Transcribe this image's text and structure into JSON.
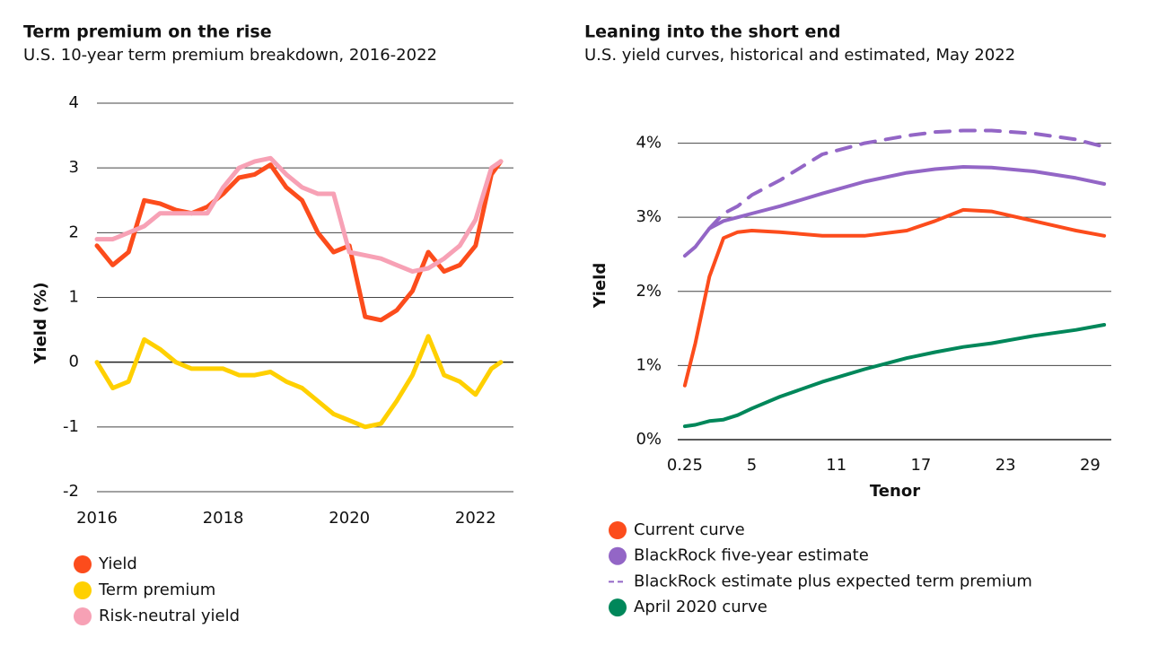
{
  "chart_data": [
    {
      "type": "line",
      "title": "Term premium on the rise",
      "subtitle": "U.S. 10-year term premium breakdown, 2016-2022",
      "ylabel": "Yield (%)",
      "x": [
        2016,
        2016.25,
        2016.5,
        2016.75,
        2017,
        2017.25,
        2017.5,
        2017.75,
        2018,
        2018.25,
        2018.5,
        2018.75,
        2019,
        2019.25,
        2019.5,
        2019.75,
        2020,
        2020.25,
        2020.5,
        2020.75,
        2021,
        2021.25,
        2021.5,
        2021.75,
        2022,
        2022.25,
        2022.4
      ],
      "series": [
        {
          "name": "Yield",
          "color": "#fc4c1c",
          "values": [
            1.8,
            1.5,
            1.7,
            2.5,
            2.45,
            2.35,
            2.3,
            2.4,
            2.6,
            2.85,
            2.9,
            3.05,
            2.7,
            2.5,
            2.0,
            1.7,
            1.8,
            0.7,
            0.65,
            0.8,
            1.1,
            1.7,
            1.4,
            1.5,
            1.8,
            2.9,
            3.1
          ]
        },
        {
          "name": "Term premium",
          "color": "#ffd000",
          "values": [
            0,
            -0.4,
            -0.3,
            0.35,
            0.2,
            0,
            -0.1,
            -0.1,
            -0.1,
            -0.2,
            -0.2,
            -0.15,
            -0.3,
            -0.4,
            -0.6,
            -0.8,
            -0.9,
            -1.0,
            -0.95,
            -0.6,
            -0.2,
            0.4,
            -0.2,
            -0.3,
            -0.5,
            -0.1,
            0
          ]
        },
        {
          "name": "Risk-neutral yield",
          "color": "#f7a1b5",
          "values": [
            1.9,
            1.9,
            2.0,
            2.1,
            2.3,
            2.3,
            2.3,
            2.3,
            2.7,
            3.0,
            3.1,
            3.15,
            2.9,
            2.7,
            2.6,
            2.6,
            1.7,
            1.65,
            1.6,
            1.5,
            1.4,
            1.45,
            1.6,
            1.8,
            2.2,
            3.0,
            3.1
          ]
        }
      ],
      "xlim": [
        2016,
        2022.6
      ],
      "xticks": [
        2016,
        2018,
        2020,
        2022
      ],
      "ylim": [
        -2,
        4
      ],
      "yticks": [
        -2,
        -1,
        0,
        1,
        2,
        3,
        4
      ],
      "grid": true
    },
    {
      "type": "line",
      "title": "Leaning into the short end",
      "subtitle": "U.S. yield curves, historical and estimated, May 2022",
      "xlabel": "Tenor",
      "ylabel": "Yield",
      "x": [
        0.25,
        1,
        2,
        3,
        4,
        5,
        7,
        10,
        13,
        16,
        18,
        20,
        22,
        25,
        28,
        30
      ],
      "series": [
        {
          "name": "Current curve",
          "color": "#fc4c1c",
          "values": [
            0.73,
            1.3,
            2.2,
            2.72,
            2.8,
            2.82,
            2.8,
            2.75,
            2.75,
            2.82,
            2.95,
            3.1,
            3.08,
            2.95,
            2.82,
            2.75
          ]
        },
        {
          "name": "BlackRock five-year estimate",
          "color": "#9366c6",
          "values": [
            2.48,
            2.6,
            2.85,
            2.95,
            3.0,
            3.05,
            3.15,
            3.32,
            3.48,
            3.6,
            3.65,
            3.68,
            3.67,
            3.62,
            3.53,
            3.45
          ]
        },
        {
          "name": "BlackRock estimate plus expected term premium",
          "color": "#9366c6",
          "style": "dashed",
          "values": [
            null,
            null,
            2.85,
            3.05,
            3.15,
            3.3,
            3.5,
            3.85,
            4.0,
            4.1,
            4.15,
            4.17,
            4.17,
            4.13,
            4.05,
            3.95
          ]
        },
        {
          "name": "April 2020 curve",
          "color": "#00875a",
          "values": [
            0.18,
            0.2,
            0.25,
            0.27,
            0.33,
            0.42,
            0.58,
            0.78,
            0.95,
            1.1,
            1.18,
            1.25,
            1.3,
            1.4,
            1.48,
            1.55
          ]
        }
      ],
      "xlim": [
        -0.25,
        30.5
      ],
      "xticks": [
        0.25,
        5,
        11,
        17,
        23,
        29
      ],
      "ylim": [
        0,
        4.6
      ],
      "yticks": [
        {
          "value": 0,
          "label": "0%"
        },
        {
          "value": 1,
          "label": "1%"
        },
        {
          "value": 2,
          "label": "2%"
        },
        {
          "value": 3,
          "label": "3%"
        },
        {
          "value": 4,
          "label": "4%"
        }
      ],
      "grid": true
    }
  ]
}
